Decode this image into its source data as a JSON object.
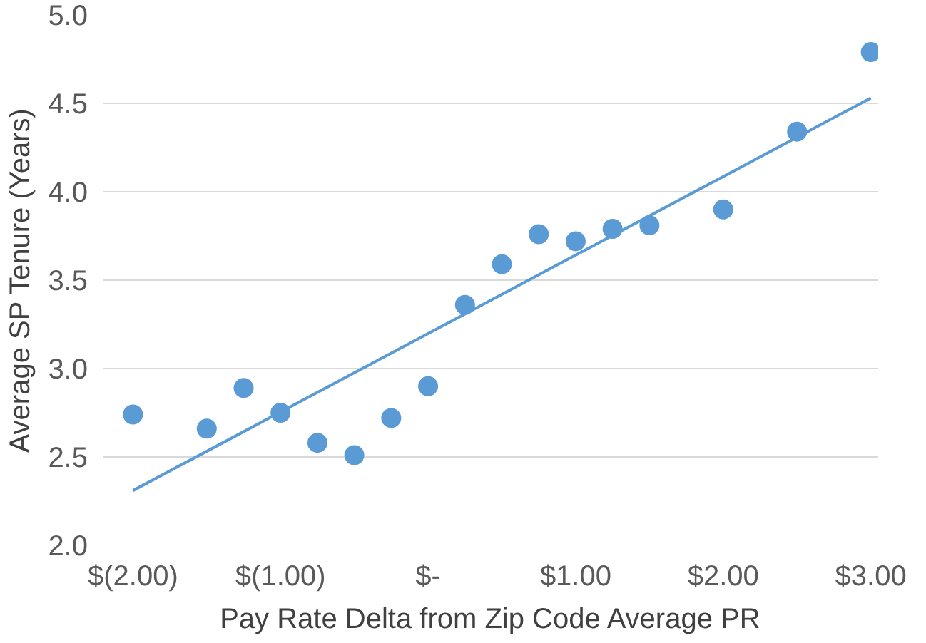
{
  "chart_data": {
    "type": "scatter",
    "xlabel": "Pay Rate Delta from Zip Code Average PR",
    "ylabel": "Average SP Tenure (Years)",
    "xlim": [
      -2.2,
      3.05
    ],
    "ylim": [
      2.0,
      5.0
    ],
    "xticks": [
      {
        "value": -2,
        "label": "$(2.00)"
      },
      {
        "value": -1,
        "label": "$(1.00)"
      },
      {
        "value": 0,
        "label": "$-"
      },
      {
        "value": 1,
        "label": "$1.00"
      },
      {
        "value": 2,
        "label": "$2.00"
      },
      {
        "value": 3,
        "label": "$3.00"
      }
    ],
    "yticks": [
      {
        "value": 2,
        "label": "2.0"
      },
      {
        "value": 2.5,
        "label": "2.5"
      },
      {
        "value": 3,
        "label": "3.0"
      },
      {
        "value": 3.5,
        "label": "3.5"
      },
      {
        "value": 4,
        "label": "4.0"
      },
      {
        "value": 4.5,
        "label": "4.5"
      },
      {
        "value": 5,
        "label": "5.0"
      }
    ],
    "grid": "y",
    "series": [
      {
        "marker": "circle",
        "color": "#5b9bd5",
        "x": [
          -2,
          -1.5,
          -1.25,
          -1,
          -0.75,
          -0.5,
          -0.25,
          0,
          0.25,
          0.5,
          0.75,
          1,
          1.25,
          1.5,
          2,
          2.5,
          3
        ],
        "values": [
          2.74,
          2.66,
          2.89,
          2.75,
          2.58,
          2.51,
          2.72,
          2.9,
          3.36,
          3.59,
          3.76,
          3.72,
          3.79,
          3.81,
          3.9,
          4.34,
          4.79
        ]
      },
      {
        "type": "line",
        "line_style": "solid",
        "color": "#5b9bd5",
        "x": [
          -2,
          3
        ],
        "values": [
          2.31,
          4.53
        ]
      }
    ]
  }
}
